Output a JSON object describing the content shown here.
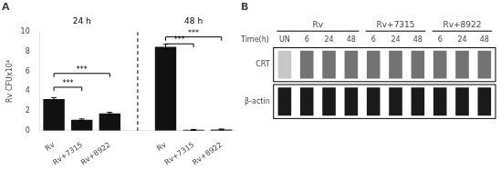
{
  "chart_data": [
    {
      "type": "bar",
      "title": "A",
      "ylabel": "Rv CFUx10⁴",
      "categories": [
        "Rv",
        "Rv+7315",
        "Rv+8922"
      ],
      "groups": [
        {
          "name": "24 h",
          "values": [
            3.2,
            1.1,
            1.75
          ],
          "errors": [
            0.15,
            0.08,
            0.1
          ],
          "brackets": [
            {
              "from": 0,
              "to": 2,
              "y": 5.8,
              "text": "***"
            },
            {
              "from": 0,
              "to": 1,
              "y": 4.4,
              "text": "***"
            }
          ]
        },
        {
          "name": "48 h",
          "values": [
            8.5,
            0.08,
            0.12
          ],
          "errors": [
            0.25,
            0.04,
            0.04
          ],
          "brackets": [
            {
              "from": 0,
              "to": 2,
              "y": 9.5,
              "text": "***"
            },
            {
              "from": 0,
              "to": 1,
              "y": 8.8,
              "text": "***"
            }
          ]
        }
      ],
      "color": "#111111",
      "ylim": [
        0,
        10
      ],
      "yticks": [
        0,
        2,
        4,
        6,
        8,
        10
      ],
      "grid": false
    },
    {
      "type": "heatmap",
      "title": "B",
      "x_label": "Time(h)",
      "groups": [
        {
          "name": "Rv",
          "columns": [
            "UN",
            "6",
            "24",
            "48"
          ]
        },
        {
          "name": "Rv+7315",
          "columns": [
            "6",
            "24",
            "48"
          ]
        },
        {
          "name": "Rv+8922",
          "columns": [
            "6",
            "24",
            "48"
          ]
        }
      ],
      "rows": [
        {
          "name": "CRT",
          "values": [
            0.78,
            0.45,
            0.45,
            0.45,
            0.45,
            0.45,
            0.45,
            0.45,
            0.45,
            0.45
          ]
        },
        {
          "name": "β-actin",
          "values": [
            0.1,
            0.1,
            0.1,
            0.1,
            0.1,
            0.1,
            0.1,
            0.1,
            0.1,
            0.1
          ]
        }
      ],
      "grid": false
    }
  ]
}
